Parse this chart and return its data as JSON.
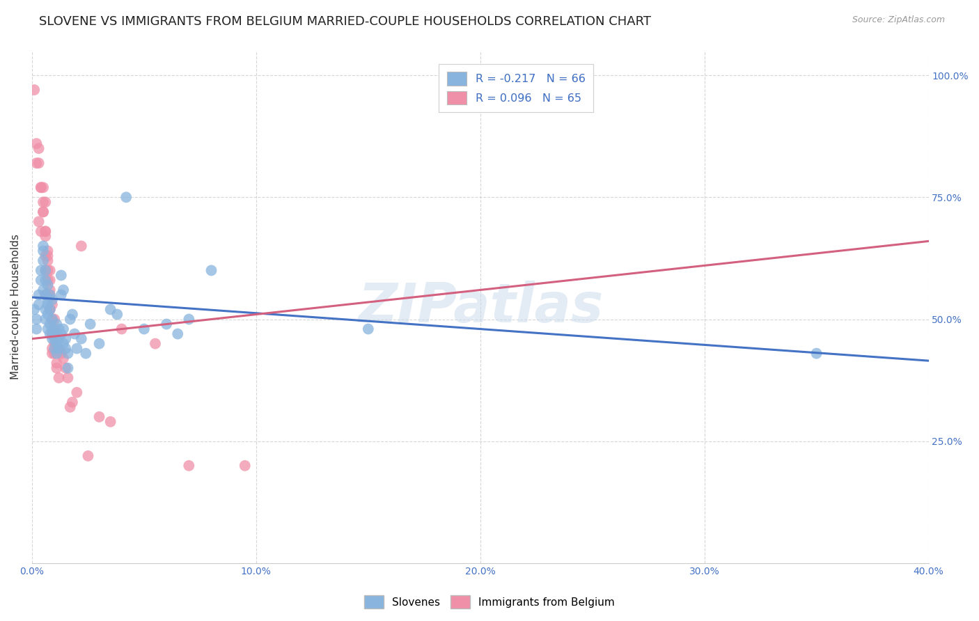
{
  "title": "SLOVENE VS IMMIGRANTS FROM BELGIUM MARRIED-COUPLE HOUSEHOLDS CORRELATION CHART",
  "source": "Source: ZipAtlas.com",
  "ylabel": "Married-couple Households",
  "legend_entries": [
    {
      "label": "R = -0.217   N = 66",
      "color": "#aec6e8"
    },
    {
      "label": "R = 0.096   N = 65",
      "color": "#f4b8c8"
    }
  ],
  "legend_labels_bottom": [
    "Slovenes",
    "Immigrants from Belgium"
  ],
  "watermark": "ZIPatlas",
  "blue_color": "#88b4de",
  "pink_color": "#f090a8",
  "blue_line_color": "#4472c4",
  "pink_line_color": "#d46080",
  "background_color": "#ffffff",
  "grid_color": "#cccccc",
  "slovene_points": [
    [
      0.001,
      0.52
    ],
    [
      0.002,
      0.5
    ],
    [
      0.002,
      0.48
    ],
    [
      0.003,
      0.55
    ],
    [
      0.003,
      0.53
    ],
    [
      0.004,
      0.6
    ],
    [
      0.004,
      0.58
    ],
    [
      0.005,
      0.56
    ],
    [
      0.005,
      0.64
    ],
    [
      0.005,
      0.62
    ],
    [
      0.005,
      0.65
    ],
    [
      0.006,
      0.6
    ],
    [
      0.006,
      0.55
    ],
    [
      0.006,
      0.58
    ],
    [
      0.006,
      0.52
    ],
    [
      0.006,
      0.5
    ],
    [
      0.007,
      0.54
    ],
    [
      0.007,
      0.57
    ],
    [
      0.007,
      0.53
    ],
    [
      0.007,
      0.48
    ],
    [
      0.007,
      0.51
    ],
    [
      0.008,
      0.47
    ],
    [
      0.008,
      0.55
    ],
    [
      0.008,
      0.52
    ],
    [
      0.008,
      0.49
    ],
    [
      0.009,
      0.46
    ],
    [
      0.009,
      0.5
    ],
    [
      0.009,
      0.48
    ],
    [
      0.009,
      0.54
    ],
    [
      0.01,
      0.46
    ],
    [
      0.01,
      0.44
    ],
    [
      0.01,
      0.47
    ],
    [
      0.011,
      0.49
    ],
    [
      0.011,
      0.43
    ],
    [
      0.011,
      0.45
    ],
    [
      0.012,
      0.48
    ],
    [
      0.012,
      0.46
    ],
    [
      0.012,
      0.44
    ],
    [
      0.013,
      0.47
    ],
    [
      0.013,
      0.55
    ],
    [
      0.013,
      0.59
    ],
    [
      0.014,
      0.56
    ],
    [
      0.014,
      0.45
    ],
    [
      0.014,
      0.48
    ],
    [
      0.015,
      0.46
    ],
    [
      0.015,
      0.44
    ],
    [
      0.016,
      0.4
    ],
    [
      0.016,
      0.43
    ],
    [
      0.017,
      0.5
    ],
    [
      0.018,
      0.51
    ],
    [
      0.019,
      0.47
    ],
    [
      0.02,
      0.44
    ],
    [
      0.022,
      0.46
    ],
    [
      0.024,
      0.43
    ],
    [
      0.026,
      0.49
    ],
    [
      0.03,
      0.45
    ],
    [
      0.035,
      0.52
    ],
    [
      0.038,
      0.51
    ],
    [
      0.042,
      0.75
    ],
    [
      0.05,
      0.48
    ],
    [
      0.06,
      0.49
    ],
    [
      0.065,
      0.47
    ],
    [
      0.07,
      0.5
    ],
    [
      0.08,
      0.6
    ],
    [
      0.15,
      0.48
    ],
    [
      0.35,
      0.43
    ]
  ],
  "immigrant_points": [
    [
      0.001,
      0.97
    ],
    [
      0.002,
      0.86
    ],
    [
      0.002,
      0.82
    ],
    [
      0.003,
      0.85
    ],
    [
      0.003,
      0.82
    ],
    [
      0.003,
      0.7
    ],
    [
      0.004,
      0.68
    ],
    [
      0.004,
      0.77
    ],
    [
      0.004,
      0.77
    ],
    [
      0.005,
      0.72
    ],
    [
      0.005,
      0.74
    ],
    [
      0.005,
      0.77
    ],
    [
      0.005,
      0.72
    ],
    [
      0.006,
      0.74
    ],
    [
      0.006,
      0.68
    ],
    [
      0.006,
      0.63
    ],
    [
      0.006,
      0.67
    ],
    [
      0.006,
      0.68
    ],
    [
      0.006,
      0.6
    ],
    [
      0.006,
      0.55
    ],
    [
      0.007,
      0.64
    ],
    [
      0.007,
      0.62
    ],
    [
      0.007,
      0.6
    ],
    [
      0.007,
      0.63
    ],
    [
      0.007,
      0.58
    ],
    [
      0.007,
      0.55
    ],
    [
      0.008,
      0.58
    ],
    [
      0.008,
      0.55
    ],
    [
      0.008,
      0.52
    ],
    [
      0.008,
      0.6
    ],
    [
      0.008,
      0.56
    ],
    [
      0.008,
      0.52
    ],
    [
      0.009,
      0.53
    ],
    [
      0.009,
      0.5
    ],
    [
      0.009,
      0.47
    ],
    [
      0.009,
      0.44
    ],
    [
      0.009,
      0.5
    ],
    [
      0.009,
      0.47
    ],
    [
      0.009,
      0.43
    ],
    [
      0.01,
      0.5
    ],
    [
      0.01,
      0.47
    ],
    [
      0.01,
      0.48
    ],
    [
      0.01,
      0.43
    ],
    [
      0.01,
      0.45
    ],
    [
      0.011,
      0.4
    ],
    [
      0.011,
      0.44
    ],
    [
      0.011,
      0.41
    ],
    [
      0.011,
      0.44
    ],
    [
      0.012,
      0.38
    ],
    [
      0.012,
      0.44
    ],
    [
      0.013,
      0.43
    ],
    [
      0.014,
      0.42
    ],
    [
      0.015,
      0.4
    ],
    [
      0.016,
      0.38
    ],
    [
      0.017,
      0.32
    ],
    [
      0.018,
      0.33
    ],
    [
      0.02,
      0.35
    ],
    [
      0.022,
      0.65
    ],
    [
      0.025,
      0.22
    ],
    [
      0.03,
      0.3
    ],
    [
      0.035,
      0.29
    ],
    [
      0.04,
      0.48
    ],
    [
      0.055,
      0.45
    ],
    [
      0.07,
      0.2
    ],
    [
      0.095,
      0.2
    ]
  ],
  "xlim": [
    0.0,
    0.4
  ],
  "ylim": [
    0.0,
    1.05
  ],
  "xtick_vals": [
    0.0,
    0.1,
    0.2,
    0.3,
    0.4
  ],
  "xtick_labels": [
    "0.0%",
    "10.0%",
    "20.0%",
    "30.0%",
    "40.0%"
  ],
  "ytick_vals": [
    0.25,
    0.5,
    0.75,
    1.0
  ],
  "ytick_labels": [
    "25.0%",
    "50.0%",
    "75.0%",
    "100.0%"
  ],
  "blue_line_x": [
    0.0,
    0.4
  ],
  "blue_line_y": [
    0.545,
    0.415
  ],
  "pink_line_x": [
    0.0,
    0.4
  ],
  "pink_line_y": [
    0.46,
    0.66
  ],
  "title_fontsize": 13,
  "axis_label_fontsize": 11,
  "tick_fontsize": 10,
  "source_fontsize": 9
}
